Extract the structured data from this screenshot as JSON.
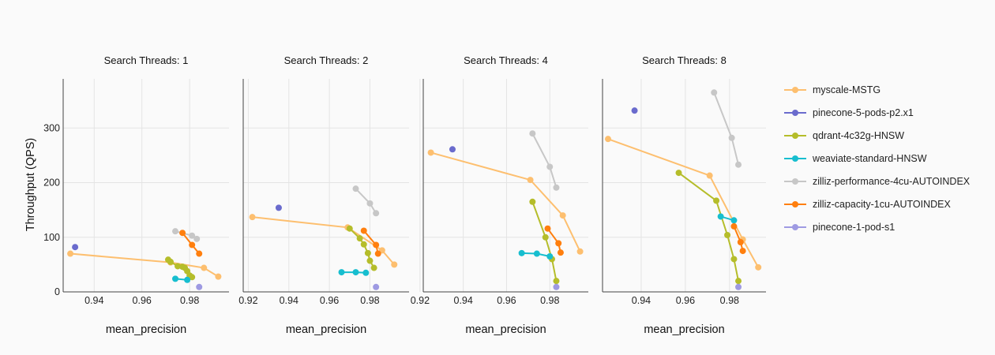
{
  "chart_data": {
    "type": "line",
    "ylabel": "Throughput (QPS)",
    "xlabel": "mean_precision",
    "y_ticks": [
      0,
      100,
      200,
      300
    ],
    "ylim": [
      0,
      390
    ],
    "grid": true,
    "legend_position": "right",
    "series_styles": [
      {
        "name": "myscale-MSTG",
        "color": "#fdbf6f"
      },
      {
        "name": "pinecone-5-pods-p2.x1",
        "color": "#6a6bcd"
      },
      {
        "name": "qdrant-4c32g-HNSW",
        "color": "#b5bd2a"
      },
      {
        "name": "weaviate-standard-HNSW",
        "color": "#17becf"
      },
      {
        "name": "zilliz-performance-4cu-AUTOINDEX",
        "color": "#c7c7c7"
      },
      {
        "name": "zilliz-capacity-1cu-AUTOINDEX",
        "color": "#ff7f0e"
      },
      {
        "name": "pinecone-1-pod-s1",
        "color": "#9e9ae2"
      }
    ],
    "panels": [
      {
        "title": "Search Threads: 1",
        "xlim": [
          0.927,
          0.9965
        ],
        "x_ticks": [
          "0.94",
          "0.96",
          "0.98"
        ],
        "series": [
          {
            "name": "myscale-MSTG",
            "points": [
              [
                0.93,
                70
              ],
              [
                0.972,
                54
              ],
              [
                0.986,
                44
              ],
              [
                0.992,
                28
              ]
            ]
          },
          {
            "name": "pinecone-5-pods-p2.x1",
            "points": [
              [
                0.932,
                82
              ]
            ]
          },
          {
            "name": "qdrant-4c32g-HNSW",
            "points": [
              [
                0.971,
                59
              ],
              [
                0.972,
                55
              ],
              [
                0.975,
                47
              ],
              [
                0.977,
                46
              ],
              [
                0.978,
                44
              ],
              [
                0.979,
                38
              ],
              [
                0.98,
                30
              ],
              [
                0.981,
                27
              ]
            ]
          },
          {
            "name": "weaviate-standard-HNSW",
            "points": [
              [
                0.974,
                24
              ],
              [
                0.979,
                22
              ]
            ]
          },
          {
            "name": "zilliz-performance-4cu-AUTOINDEX",
            "points": [
              [
                0.974,
                111
              ],
              [
                0.981,
                103
              ],
              [
                0.983,
                97
              ]
            ]
          },
          {
            "name": "zilliz-capacity-1cu-AUTOINDEX",
            "points": [
              [
                0.977,
                108
              ],
              [
                0.981,
                86
              ],
              [
                0.984,
                70
              ]
            ]
          },
          {
            "name": "pinecone-1-pod-s1",
            "points": [
              [
                0.984,
                9
              ]
            ]
          }
        ]
      },
      {
        "title": "Search Threads: 2",
        "xlim": [
          0.9175,
          0.9993
        ],
        "x_ticks": [
          "0.92",
          "0.94",
          "0.96",
          "0.98"
        ],
        "series": [
          {
            "name": "myscale-MSTG",
            "points": [
              [
                0.922,
                137
              ],
              [
                0.969,
                118
              ],
              [
                0.986,
                76
              ],
              [
                0.992,
                50
              ]
            ]
          },
          {
            "name": "pinecone-5-pods-p2.x1",
            "points": [
              [
                0.935,
                154
              ]
            ]
          },
          {
            "name": "qdrant-4c32g-HNSW",
            "points": [
              [
                0.97,
                116
              ],
              [
                0.975,
                98
              ],
              [
                0.977,
                87
              ],
              [
                0.979,
                71
              ],
              [
                0.98,
                57
              ],
              [
                0.982,
                44
              ]
            ]
          },
          {
            "name": "weaviate-standard-HNSW",
            "points": [
              [
                0.966,
                36
              ],
              [
                0.973,
                36
              ],
              [
                0.978,
                35
              ]
            ]
          },
          {
            "name": "zilliz-performance-4cu-AUTOINDEX",
            "points": [
              [
                0.973,
                189
              ],
              [
                0.98,
                162
              ],
              [
                0.983,
                144
              ]
            ]
          },
          {
            "name": "zilliz-capacity-1cu-AUTOINDEX",
            "points": [
              [
                0.977,
                112
              ],
              [
                0.983,
                86
              ],
              [
                0.984,
                70
              ]
            ]
          },
          {
            "name": "pinecone-1-pod-s1",
            "points": [
              [
                0.983,
                9
              ]
            ]
          }
        ]
      },
      {
        "title": "Search Threads: 4",
        "xlim": [
          0.9215,
          0.9978
        ],
        "x_ticks": [
          "0.92",
          "0.94",
          "0.96",
          "0.98"
        ],
        "series": [
          {
            "name": "myscale-MSTG",
            "points": [
              [
                0.925,
                255
              ],
              [
                0.971,
                205
              ],
              [
                0.986,
                140
              ],
              [
                0.994,
                74
              ]
            ]
          },
          {
            "name": "pinecone-5-pods-p2.x1",
            "points": [
              [
                0.935,
                261
              ]
            ]
          },
          {
            "name": "qdrant-4c32g-HNSW",
            "points": [
              [
                0.972,
                165
              ],
              [
                0.978,
                100
              ],
              [
                0.981,
                60
              ],
              [
                0.983,
                20
              ]
            ]
          },
          {
            "name": "weaviate-standard-HNSW",
            "points": [
              [
                0.967,
                71
              ],
              [
                0.974,
                70
              ],
              [
                0.98,
                65
              ]
            ]
          },
          {
            "name": "zilliz-performance-4cu-AUTOINDEX",
            "points": [
              [
                0.972,
                290
              ],
              [
                0.98,
                229
              ],
              [
                0.983,
                191
              ]
            ]
          },
          {
            "name": "zilliz-capacity-1cu-AUTOINDEX",
            "points": [
              [
                0.979,
                116
              ],
              [
                0.984,
                89
              ],
              [
                0.985,
                72
              ]
            ]
          },
          {
            "name": "pinecone-1-pod-s1",
            "points": [
              [
                0.983,
                9
              ]
            ]
          }
        ]
      },
      {
        "title": "Search Threads: 8",
        "xlim": [
          0.9225,
          0.9965
        ],
        "x_ticks": [
          "0.94",
          "0.96",
          "0.98"
        ],
        "series": [
          {
            "name": "myscale-MSTG",
            "points": [
              [
                0.925,
                280
              ],
              [
                0.971,
                213
              ],
              [
                0.986,
                96
              ],
              [
                0.993,
                45
              ]
            ]
          },
          {
            "name": "pinecone-5-pods-p2.x1",
            "points": [
              [
                0.937,
                332
              ]
            ]
          },
          {
            "name": "qdrant-4c32g-HNSW",
            "points": [
              [
                0.957,
                218
              ],
              [
                0.974,
                167
              ],
              [
                0.979,
                104
              ],
              [
                0.982,
                60
              ],
              [
                0.984,
                20
              ]
            ]
          },
          {
            "name": "weaviate-standard-HNSW",
            "points": [
              [
                0.976,
                138
              ],
              [
                0.982,
                131
              ]
            ]
          },
          {
            "name": "zilliz-performance-4cu-AUTOINDEX",
            "points": [
              [
                0.973,
                365
              ],
              [
                0.981,
                282
              ],
              [
                0.984,
                233
              ]
            ]
          },
          {
            "name": "zilliz-capacity-1cu-AUTOINDEX",
            "points": [
              [
                0.982,
                120
              ],
              [
                0.985,
                91
              ],
              [
                0.986,
                75
              ]
            ]
          },
          {
            "name": "pinecone-1-pod-s1",
            "points": [
              [
                0.984,
                9
              ]
            ]
          }
        ]
      }
    ]
  }
}
